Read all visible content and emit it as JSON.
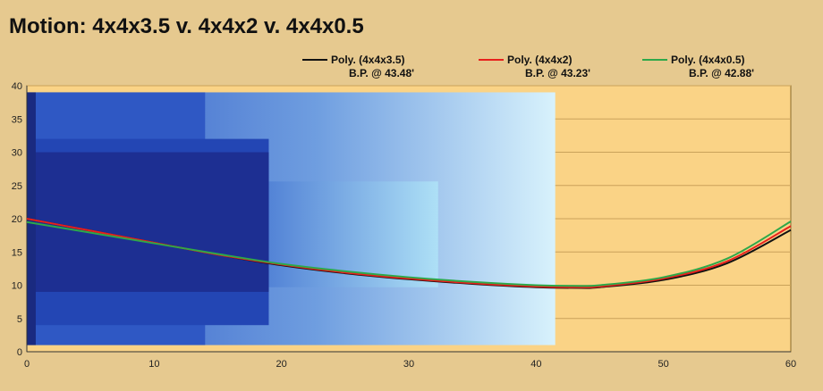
{
  "chart_data": {
    "type": "line",
    "title": "Motion: 4x4x3.5 v. 4x4x2 v. 4x4x0.5",
    "xlim": [
      0,
      60
    ],
    "ylim": [
      0,
      40
    ],
    "x_ticks": [
      0,
      10,
      20,
      30,
      40,
      50,
      60
    ],
    "y_ticks": [
      0,
      5,
      10,
      15,
      20,
      25,
      30,
      35,
      40
    ],
    "grid": "horizontal",
    "legend_position": "top-right",
    "series": [
      {
        "name": "Poly. (4x4x3.5)",
        "annotation": "B.P. @ 43.48'",
        "color": "#111111",
        "x": [
          0,
          5,
          10,
          15,
          20,
          25,
          30,
          35,
          40,
          43.48,
          45,
          50,
          55,
          60
        ],
        "y": [
          20.0,
          18.2,
          16.4,
          14.6,
          13.0,
          11.8,
          10.9,
          10.2,
          9.7,
          9.6,
          9.7,
          10.8,
          13.3,
          18.3
        ]
      },
      {
        "name": "Poly. (4x4x2)",
        "annotation": "B.P. @ 43.23'",
        "color": "#e8201c",
        "x": [
          0,
          5,
          10,
          15,
          20,
          25,
          30,
          35,
          40,
          43.23,
          45,
          50,
          55,
          60
        ],
        "y": [
          20.0,
          18.2,
          16.4,
          14.6,
          13.1,
          11.9,
          11.0,
          10.3,
          9.8,
          9.7,
          9.8,
          11.0,
          13.6,
          18.9
        ]
      },
      {
        "name": "Poly. (4x4x0.5)",
        "annotation": "B.P. @ 42.88'",
        "color": "#2ea84a",
        "x": [
          0,
          5,
          10,
          15,
          20,
          25,
          30,
          35,
          40,
          42.88,
          45,
          50,
          55,
          60
        ],
        "y": [
          19.5,
          17.9,
          16.3,
          14.7,
          13.2,
          12.1,
          11.2,
          10.5,
          10.0,
          9.9,
          10.0,
          11.2,
          14.0,
          19.6
        ]
      }
    ]
  },
  "colors": {
    "page_background": "#e6c98f",
    "plot_background": "#fad386",
    "grid": "#c9a25a",
    "band_outer": "#2f58c4",
    "band_mid": "#2346b4",
    "band_core": "#1d2f92"
  }
}
